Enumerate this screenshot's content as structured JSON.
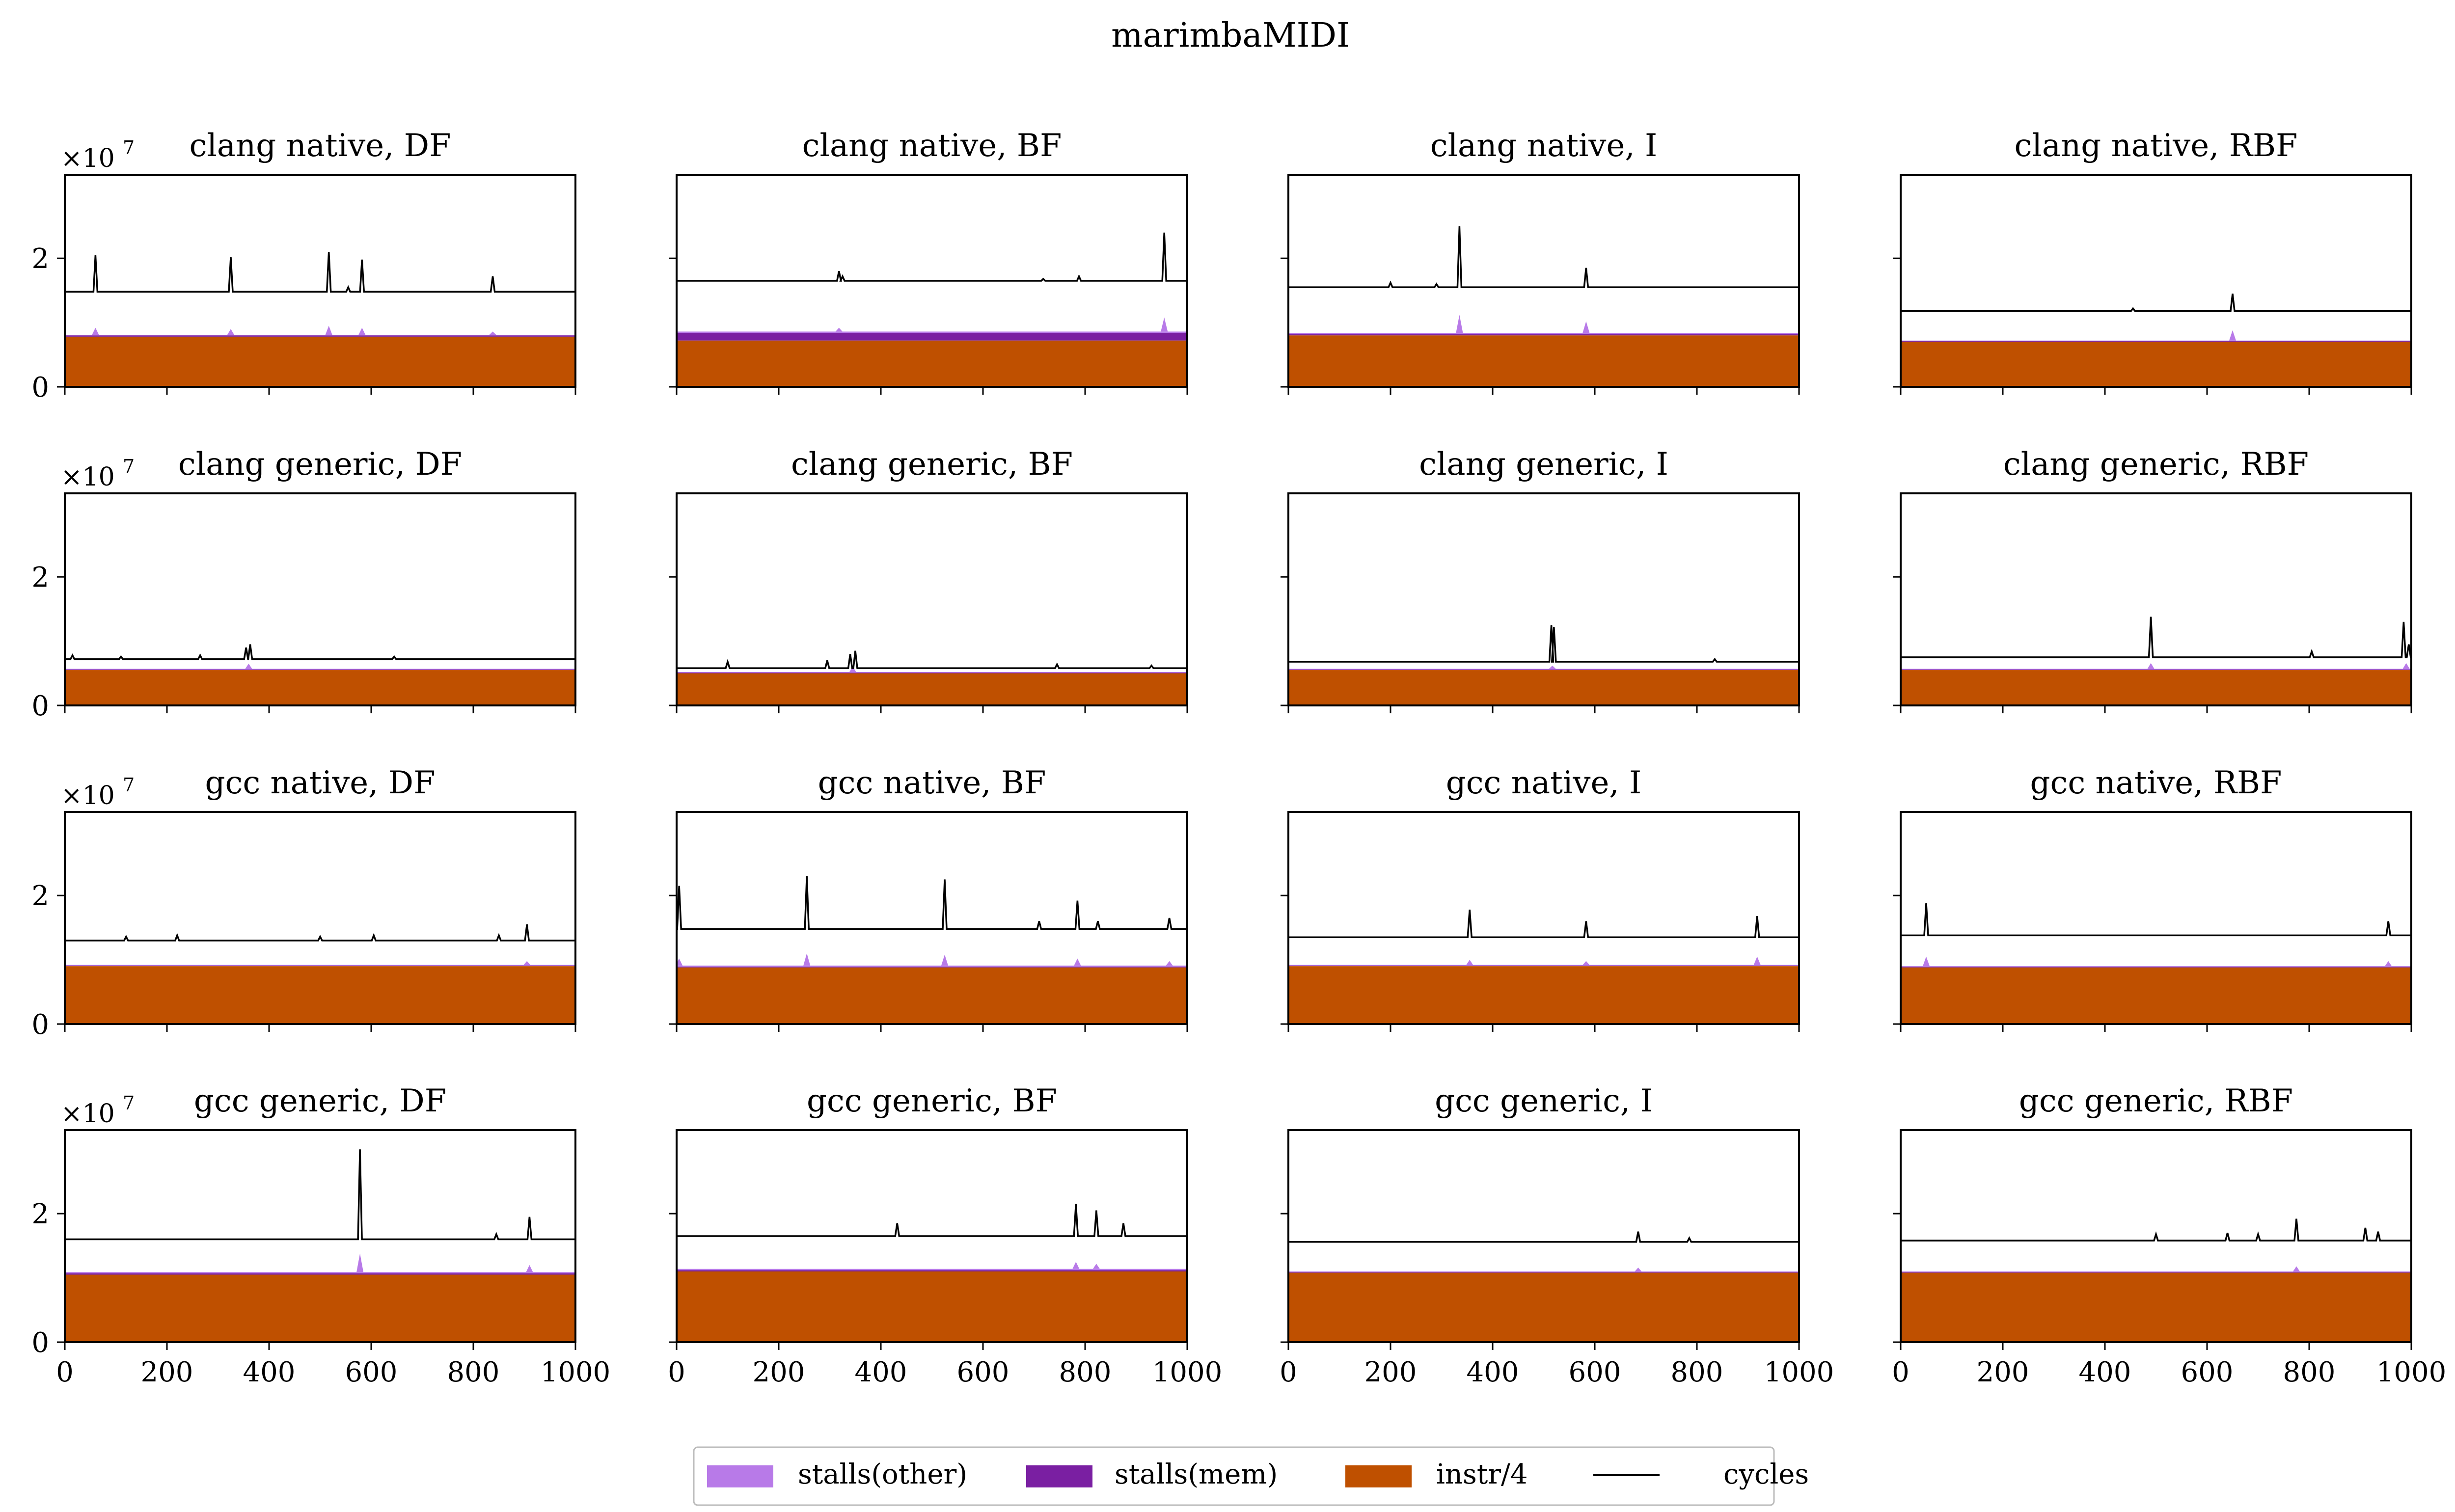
{
  "figure": {
    "suptitle": "marimbaMIDI",
    "exponent_label": "×10",
    "exponent_power": "7"
  },
  "legend": {
    "placement": "bottom-center",
    "items": [
      {
        "label": "stalls(other)",
        "color": "#b87ae8",
        "kind": "patch"
      },
      {
        "label": "stalls(mem)",
        "color": "#7a1fa2",
        "kind": "patch"
      },
      {
        "label": "instr/4",
        "color": "#bf5000",
        "kind": "patch"
      },
      {
        "label": "cycles",
        "color": "#000000",
        "kind": "line"
      }
    ]
  },
  "colors": {
    "stalls_other": "#b87ae8",
    "stalls_mem": "#7a1fa2",
    "instr": "#bf5000",
    "cycles": "#000000"
  },
  "chart_data": [
    {
      "type": "area",
      "title": "clang native, DF",
      "xlim": [
        0,
        1000
      ],
      "ylim": [
        0,
        3.3
      ],
      "x_ticks": [
        0,
        200,
        400,
        600,
        800,
        1000
      ],
      "y_ticks": [
        0,
        2
      ],
      "unit": "1e7",
      "series": {
        "instr_div4": 0.78,
        "stalls_mem": 0.02,
        "stalls_other": 0.01,
        "cycles_base": 1.48,
        "cycle_spikes": [
          [
            60,
            2.05
          ],
          [
            325,
            2.02
          ],
          [
            517,
            2.1
          ],
          [
            555,
            1.55
          ],
          [
            582,
            1.98
          ],
          [
            838,
            1.72
          ]
        ],
        "stall_spikes": [
          [
            60,
            0.92
          ],
          [
            325,
            0.9
          ],
          [
            517,
            0.95
          ],
          [
            582,
            0.92
          ],
          [
            838,
            0.86
          ]
        ]
      }
    },
    {
      "type": "area",
      "title": "clang native, BF",
      "xlim": [
        0,
        1000
      ],
      "ylim": [
        0,
        3.3
      ],
      "x_ticks": [
        0,
        200,
        400,
        600,
        800,
        1000
      ],
      "y_ticks": [
        0,
        2
      ],
      "unit": "1e7",
      "series": {
        "instr_div4": 0.72,
        "stalls_mem": 0.12,
        "stalls_other": 0.02,
        "cycles_base": 1.65,
        "cycle_spikes": [
          [
            318,
            1.8
          ],
          [
            325,
            1.72
          ],
          [
            718,
            1.68
          ],
          [
            788,
            1.72
          ],
          [
            955,
            2.4
          ]
        ],
        "stall_spikes": [
          [
            318,
            0.92
          ],
          [
            955,
            1.08
          ]
        ]
      }
    },
    {
      "type": "area",
      "title": "clang native, I",
      "xlim": [
        0,
        1000
      ],
      "ylim": [
        0,
        3.3
      ],
      "x_ticks": [
        0,
        200,
        400,
        600,
        800,
        1000
      ],
      "y_ticks": [
        0,
        2
      ],
      "unit": "1e7",
      "series": {
        "instr_div4": 0.8,
        "stalls_mem": 0.02,
        "stalls_other": 0.02,
        "cycles_base": 1.55,
        "cycle_spikes": [
          [
            200,
            1.62
          ],
          [
            290,
            1.6
          ],
          [
            335,
            2.5
          ],
          [
            583,
            1.85
          ]
        ],
        "stall_spikes": [
          [
            335,
            1.12
          ],
          [
            583,
            1.02
          ]
        ]
      }
    },
    {
      "type": "area",
      "title": "clang native, RBF",
      "xlim": [
        0,
        1000
      ],
      "ylim": [
        0,
        3.3
      ],
      "x_ticks": [
        0,
        200,
        400,
        600,
        800,
        1000
      ],
      "y_ticks": [
        0,
        2
      ],
      "unit": "1e7",
      "series": {
        "instr_div4": 0.7,
        "stalls_mem": 0.01,
        "stalls_other": 0.01,
        "cycles_base": 1.18,
        "cycle_spikes": [
          [
            455,
            1.22
          ],
          [
            650,
            1.45
          ]
        ],
        "stall_spikes": [
          [
            650,
            0.88
          ]
        ]
      }
    },
    {
      "type": "area",
      "title": "clang generic, DF",
      "xlim": [
        0,
        1000
      ],
      "ylim": [
        0,
        3.3
      ],
      "x_ticks": [
        0,
        200,
        400,
        600,
        800,
        1000
      ],
      "y_ticks": [
        0,
        2
      ],
      "unit": "1e7",
      "series": {
        "instr_div4": 0.55,
        "stalls_mem": 0.01,
        "stalls_other": 0.01,
        "cycles_base": 0.72,
        "cycle_spikes": [
          [
            15,
            0.78
          ],
          [
            110,
            0.76
          ],
          [
            265,
            0.78
          ],
          [
            355,
            0.9
          ],
          [
            363,
            0.95
          ],
          [
            645,
            0.76
          ]
        ],
        "stall_spikes": [
          [
            360,
            0.65
          ]
        ]
      }
    },
    {
      "type": "area",
      "title": "clang generic, BF",
      "xlim": [
        0,
        1000
      ],
      "ylim": [
        0,
        3.3
      ],
      "x_ticks": [
        0,
        200,
        400,
        600,
        800,
        1000
      ],
      "y_ticks": [
        0,
        2
      ],
      "unit": "1e7",
      "series": {
        "instr_div4": 0.5,
        "stalls_mem": 0.01,
        "stalls_other": 0.01,
        "cycles_base": 0.58,
        "cycle_spikes": [
          [
            100,
            0.68
          ],
          [
            295,
            0.7
          ],
          [
            340,
            0.8
          ],
          [
            350,
            0.85
          ],
          [
            745,
            0.64
          ],
          [
            930,
            0.62
          ]
        ],
        "stall_spikes": [
          [
            345,
            0.6
          ]
        ]
      }
    },
    {
      "type": "area",
      "title": "clang generic, I",
      "xlim": [
        0,
        1000
      ],
      "ylim": [
        0,
        3.3
      ],
      "x_ticks": [
        0,
        200,
        400,
        600,
        800,
        1000
      ],
      "y_ticks": [
        0,
        2
      ],
      "unit": "1e7",
      "series": {
        "instr_div4": 0.55,
        "stalls_mem": 0.01,
        "stalls_other": 0.01,
        "cycles_base": 0.68,
        "cycle_spikes": [
          [
            515,
            1.25
          ],
          [
            520,
            1.22
          ],
          [
            835,
            0.72
          ]
        ],
        "stall_spikes": [
          [
            517,
            0.62
          ]
        ]
      }
    },
    {
      "type": "area",
      "title": "clang generic, RBF",
      "xlim": [
        0,
        1000
      ],
      "ylim": [
        0,
        3.3
      ],
      "x_ticks": [
        0,
        200,
        400,
        600,
        800,
        1000
      ],
      "y_ticks": [
        0,
        2
      ],
      "unit": "1e7",
      "series": {
        "instr_div4": 0.55,
        "stalls_mem": 0.01,
        "stalls_other": 0.01,
        "cycles_base": 0.75,
        "cycle_spikes": [
          [
            490,
            1.38
          ],
          [
            805,
            0.84
          ],
          [
            985,
            1.3
          ],
          [
            995,
            0.95
          ]
        ],
        "stall_spikes": [
          [
            490,
            0.66
          ],
          [
            990,
            0.66
          ]
        ]
      }
    },
    {
      "type": "area",
      "title": "gcc native, DF",
      "xlim": [
        0,
        1000
      ],
      "ylim": [
        0,
        3.3
      ],
      "x_ticks": [
        0,
        200,
        400,
        600,
        800,
        1000
      ],
      "y_ticks": [
        0,
        2
      ],
      "unit": "1e7",
      "series": {
        "instr_div4": 0.9,
        "stalls_mem": 0.01,
        "stalls_other": 0.01,
        "cycles_base": 1.3,
        "cycle_spikes": [
          [
            120,
            1.36
          ],
          [
            220,
            1.38
          ],
          [
            500,
            1.36
          ],
          [
            605,
            1.38
          ],
          [
            850,
            1.38
          ],
          [
            905,
            1.55
          ]
        ],
        "stall_spikes": [
          [
            905,
            0.98
          ]
        ]
      }
    },
    {
      "type": "area",
      "title": "gcc native, BF",
      "xlim": [
        0,
        1000
      ],
      "ylim": [
        0,
        3.3
      ],
      "x_ticks": [
        0,
        200,
        400,
        600,
        800,
        1000
      ],
      "y_ticks": [
        0,
        2
      ],
      "unit": "1e7",
      "series": {
        "instr_div4": 0.88,
        "stalls_mem": 0.01,
        "stalls_other": 0.02,
        "cycles_base": 1.48,
        "cycle_spikes": [
          [
            5,
            2.15
          ],
          [
            255,
            2.3
          ],
          [
            525,
            2.25
          ],
          [
            710,
            1.6
          ],
          [
            785,
            1.92
          ],
          [
            825,
            1.6
          ],
          [
            965,
            1.65
          ]
        ],
        "stall_spikes": [
          [
            5,
            1.02
          ],
          [
            255,
            1.1
          ],
          [
            525,
            1.08
          ],
          [
            785,
            1.02
          ],
          [
            965,
            0.98
          ]
        ]
      }
    },
    {
      "type": "area",
      "title": "gcc native, I",
      "xlim": [
        0,
        1000
      ],
      "ylim": [
        0,
        3.3
      ],
      "x_ticks": [
        0,
        200,
        400,
        600,
        800,
        1000
      ],
      "y_ticks": [
        0,
        2
      ],
      "unit": "1e7",
      "series": {
        "instr_div4": 0.9,
        "stalls_mem": 0.01,
        "stalls_other": 0.01,
        "cycles_base": 1.35,
        "cycle_spikes": [
          [
            355,
            1.78
          ],
          [
            583,
            1.6
          ],
          [
            918,
            1.68
          ]
        ],
        "stall_spikes": [
          [
            355,
            1.0
          ],
          [
            583,
            0.98
          ],
          [
            918,
            1.05
          ]
        ]
      }
    },
    {
      "type": "area",
      "title": "gcc native, RBF",
      "xlim": [
        0,
        1000
      ],
      "ylim": [
        0,
        3.3
      ],
      "x_ticks": [
        0,
        200,
        400,
        600,
        800,
        1000
      ],
      "y_ticks": [
        0,
        2
      ],
      "unit": "1e7",
      "series": {
        "instr_div4": 0.88,
        "stalls_mem": 0.01,
        "stalls_other": 0.01,
        "cycles_base": 1.38,
        "cycle_spikes": [
          [
            50,
            1.88
          ],
          [
            955,
            1.6
          ]
        ],
        "stall_spikes": [
          [
            50,
            1.05
          ],
          [
            955,
            0.98
          ]
        ]
      }
    },
    {
      "type": "area",
      "title": "gcc generic, DF",
      "xlim": [
        0,
        1000
      ],
      "ylim": [
        0,
        3.3
      ],
      "x_ticks": [
        0,
        200,
        400,
        600,
        800,
        1000
      ],
      "y_ticks": [
        0,
        2
      ],
      "unit": "1e7",
      "series": {
        "instr_div4": 1.05,
        "stalls_mem": 0.02,
        "stalls_other": 0.02,
        "cycles_base": 1.6,
        "cycle_spikes": [
          [
            578,
            3.0
          ],
          [
            910,
            1.95
          ],
          [
            845,
            1.68
          ]
        ],
        "stall_spikes": [
          [
            578,
            1.38
          ],
          [
            910,
            1.2
          ]
        ]
      }
    },
    {
      "type": "area",
      "title": "gcc generic, BF",
      "xlim": [
        0,
        1000
      ],
      "ylim": [
        0,
        3.3
      ],
      "x_ticks": [
        0,
        200,
        400,
        600,
        800,
        1000
      ],
      "y_ticks": [
        0,
        2
      ],
      "unit": "1e7",
      "series": {
        "instr_div4": 1.1,
        "stalls_mem": 0.02,
        "stalls_other": 0.02,
        "cycles_base": 1.65,
        "cycle_spikes": [
          [
            432,
            1.85
          ],
          [
            782,
            2.15
          ],
          [
            822,
            2.05
          ],
          [
            875,
            1.85
          ]
        ],
        "stall_spikes": [
          [
            782,
            1.25
          ],
          [
            822,
            1.22
          ]
        ]
      }
    },
    {
      "type": "area",
      "title": "gcc generic, I",
      "xlim": [
        0,
        1000
      ],
      "ylim": [
        0,
        3.3
      ],
      "x_ticks": [
        0,
        200,
        400,
        600,
        800,
        1000
      ],
      "y_ticks": [
        0,
        2
      ],
      "unit": "1e7",
      "series": {
        "instr_div4": 1.08,
        "stalls_mem": 0.01,
        "stalls_other": 0.01,
        "cycles_base": 1.56,
        "cycle_spikes": [
          [
            685,
            1.72
          ],
          [
            785,
            1.62
          ]
        ],
        "stall_spikes": [
          [
            685,
            1.16
          ]
        ]
      }
    },
    {
      "type": "area",
      "title": "gcc generic, RBF",
      "xlim": [
        0,
        1000
      ],
      "ylim": [
        0,
        3.3
      ],
      "x_ticks": [
        0,
        200,
        400,
        600,
        800,
        1000
      ],
      "y_ticks": [
        0,
        2
      ],
      "unit": "1e7",
      "series": {
        "instr_div4": 1.08,
        "stalls_mem": 0.01,
        "stalls_other": 0.01,
        "cycles_base": 1.58,
        "cycle_spikes": [
          [
            500,
            1.68
          ],
          [
            640,
            1.7
          ],
          [
            700,
            1.68
          ],
          [
            775,
            1.92
          ],
          [
            910,
            1.78
          ],
          [
            935,
            1.72
          ]
        ],
        "stall_spikes": [
          [
            775,
            1.18
          ]
        ]
      }
    }
  ]
}
